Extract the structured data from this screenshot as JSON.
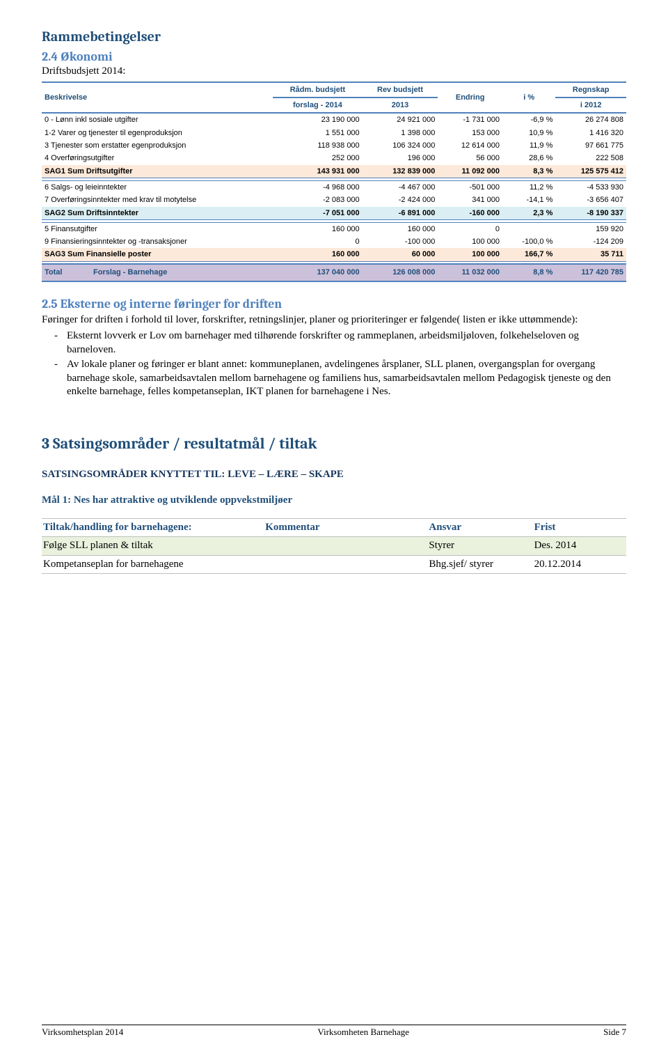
{
  "section1_title": "Rammebetingelser",
  "section24": {
    "number_title": "2.4  Økonomi",
    "sub": "Driftsbudsjett 2014:"
  },
  "budget_table": {
    "headers": [
      "Beskrivelse",
      "Rådm. budsjett forslag - 2014",
      "Rev budsjett 2013",
      "Endring",
      "i %",
      "Regnskap i 2012"
    ],
    "header_line1": [
      "Beskrivelse",
      "Rådm. budsjett",
      "Rev budsjett",
      "Endring",
      "i %",
      "Regnskap"
    ],
    "header_line2": [
      "",
      "forslag - 2014",
      "2013",
      "",
      "",
      "i 2012"
    ],
    "groups": [
      {
        "rows": [
          {
            "desc": "0 - Lønn inkl sosiale utgifter",
            "c1": "23 190 000",
            "c2": "24 921 000",
            "c3": "-1 731 000",
            "c4": "-6,9 %",
            "c5": "26 274 808",
            "bg": "#ffffff"
          },
          {
            "desc": "1-2 Varer og tjenester til egenproduksjon",
            "c1": "1 551 000",
            "c2": "1 398 000",
            "c3": "153 000",
            "c4": "10,9 %",
            "c5": "1 416 320",
            "bg": "#ffffff"
          },
          {
            "desc": "3 Tjenester som erstatter egenproduksjon",
            "c1": "118 938 000",
            "c2": "106 324 000",
            "c3": "12 614 000",
            "c4": "11,9 %",
            "c5": "97 661 775",
            "bg": "#ffffff"
          },
          {
            "desc": "4 Overføringsutgifter",
            "c1": "252 000",
            "c2": "196 000",
            "c3": "56 000",
            "c4": "28,6 %",
            "c5": "222 508",
            "bg": "#ffffff"
          }
        ],
        "sum": {
          "desc": "SAG1 Sum Driftsutgifter",
          "c1": "143 931 000",
          "c2": "132 839 000",
          "c3": "11 092 000",
          "c4": "8,3 %",
          "c5": "125 575 412",
          "bg": "#fde9d9"
        }
      },
      {
        "rows": [
          {
            "desc": "6 Salgs- og leieinntekter",
            "c1": "-4 968 000",
            "c2": "-4 467 000",
            "c3": "-501 000",
            "c4": "11,2 %",
            "c5": "-4 533 930",
            "bg": "#ffffff"
          },
          {
            "desc": "7 Overføringsinntekter med krav til motytelse",
            "c1": "-2 083 000",
            "c2": "-2 424 000",
            "c3": "341 000",
            "c4": "-14,1 %",
            "c5": "-3 656 407",
            "bg": "#ffffff"
          }
        ],
        "sum": {
          "desc": "SAG2 Sum Driftsinntekter",
          "c1": "-7 051 000",
          "c2": "-6 891 000",
          "c3": "-160 000",
          "c4": "2,3 %",
          "c5": "-8 190 337",
          "bg": "#daeef3"
        }
      },
      {
        "rows": [
          {
            "desc": "5 Finansutgifter",
            "c1": "160 000",
            "c2": "160 000",
            "c3": "0",
            "c4": "",
            "c5": "159 920",
            "bg": "#ffffff"
          },
          {
            "desc": "9 Finansieringsinntekter og -transaksjoner",
            "c1": "0",
            "c2": "-100 000",
            "c3": "100 000",
            "c4": "-100,0 %",
            "c5": "-124 209",
            "bg": "#ffffff"
          }
        ],
        "sum": {
          "desc": "SAG3 Sum Finansielle poster",
          "c1": "160 000",
          "c2": "60 000",
          "c3": "100 000",
          "c4": "166,7 %",
          "c5": "35 711",
          "bg": "#fde9d9"
        }
      }
    ],
    "total": {
      "label": "Total",
      "desc": "Forslag - Barnehage",
      "c1": "137 040 000",
      "c2": "126 008 000",
      "c3": "11 032 000",
      "c4": "8,8 %",
      "c5": "117 420 785",
      "bg": "#ccc1da"
    }
  },
  "section25": {
    "title": "2.5  Eksterne og interne føringer for driften",
    "intro": "Føringer for driften i forhold til lover, forskrifter, retningslinjer, planer og prioriteringer er følgende( listen er ikke uttømmende):",
    "bullets": [
      "Eksternt lovverk er Lov om barnehager med tilhørende forskrifter og rammeplanen, arbeidsmiljøloven, folkehelseloven og barneloven.",
      "Av lokale planer og føringer er blant annet: kommuneplanen, avdelingenes årsplaner, SLL planen, overgangsplan for overgang barnehage skole, samarbeidsavtalen mellom barnehagene og familiens hus, samarbeidsavtalen mellom Pedagogisk tjeneste og den enkelte barnehage, felles  kompetanseplan, IKT planen for barnehagene i Nes."
    ]
  },
  "section3": {
    "title": "3   Satsingsområder / resultatmål / tiltak",
    "sats_line": "SATSINGSOMRÅDER KNYTTET TIL: LEVE – LÆRE – SKAPE",
    "mal_line": "Mål 1: Nes har attraktive og utviklende oppvekstmiljøer"
  },
  "tiltak_table": {
    "headers": {
      "c1": "Tiltak/handling for barnehagene:",
      "c2": "Kommentar",
      "c3": "Ansvar",
      "c4": "Frist"
    },
    "rows": [
      {
        "c1": "Følge SLL planen & tiltak",
        "c2": "",
        "c3": "Styrer",
        "c4": "Des.  2014",
        "shaded": true
      },
      {
        "c1": "Kompetanseplan for barnehagene",
        "c2": "",
        "c3": "Bhg.sjef/ styrer",
        "c4": "20.12.2014",
        "shaded": false
      }
    ]
  },
  "footer": {
    "left": "Virksomhetsplan 2014",
    "center": "Virksomheten Barnehage",
    "right": "Side 7"
  }
}
